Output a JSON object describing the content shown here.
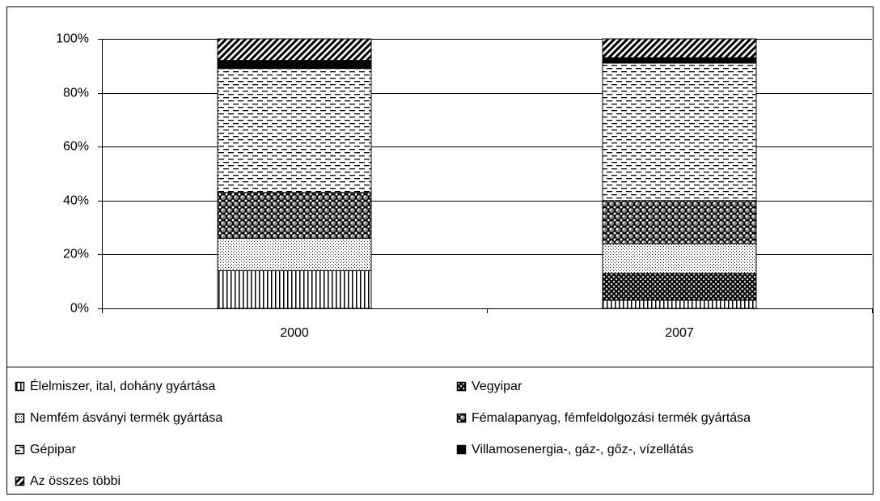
{
  "chart_data": {
    "type": "stacked_bar",
    "categories": [
      "2000",
      "2007"
    ],
    "series": [
      {
        "name": "Élelmiszer, ital, dohány gyártása",
        "color": "#000000",
        "pattern": "vertical",
        "values": [
          14,
          3
        ]
      },
      {
        "name": "Vegyipar",
        "color": "#000000",
        "pattern": "crosshatch",
        "values": [
          0,
          10
        ]
      },
      {
        "name": "Nemfém ásványi termék gyártása",
        "color": "#000000",
        "pattern": "dots",
        "values": [
          12,
          11
        ]
      },
      {
        "name": "Fémalapanyag, fémfeldolgozási termék gyártása",
        "color": "#000000",
        "pattern": "balls",
        "values": [
          17,
          16
        ]
      },
      {
        "name": "Gépipar",
        "color": "#000000",
        "pattern": "dashes",
        "values": [
          46,
          51
        ]
      },
      {
        "name": "Villamosenergia-, gáz-, gőz-, vízellátás",
        "color": "#000000",
        "pattern": "solid",
        "values": [
          3,
          2
        ]
      },
      {
        "name": "Az összes többi",
        "color": "#000000",
        "pattern": "diagonal",
        "values": [
          8,
          7
        ]
      }
    ],
    "ylim": [
      0,
      100
    ],
    "yticks": [
      {
        "value": 0,
        "label": "0%"
      },
      {
        "value": 20,
        "label": "20%"
      },
      {
        "value": 40,
        "label": "40%"
      },
      {
        "value": 60,
        "label": "60%"
      },
      {
        "value": 80,
        "label": "80%"
      },
      {
        "value": 100,
        "label": "100%"
      }
    ],
    "grid": true,
    "legend": "bottom"
  }
}
